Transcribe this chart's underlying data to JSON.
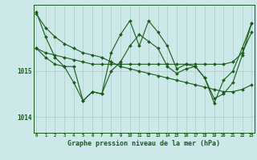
{
  "title": "Graphe pression niveau de la mer (hPa)",
  "bg_color": "#cce8e8",
  "grid_color": "#aacccc",
  "line_color": "#1a5c1a",
  "x_labels": [
    "0",
    "1",
    "2",
    "3",
    "4",
    "5",
    "6",
    "7",
    "8",
    "9",
    "10",
    "11",
    "12",
    "13",
    "14",
    "15",
    "16",
    "17",
    "18",
    "19",
    "20",
    "21",
    "22",
    "23"
  ],
  "ylim": [
    1013.65,
    1016.45
  ],
  "yticks": [
    1014,
    1015
  ],
  "series": [
    [
      1016.25,
      1015.95,
      1015.75,
      1015.6,
      1015.5,
      1015.4,
      1015.35,
      1015.3,
      1015.2,
      1015.1,
      1015.05,
      1015.0,
      1014.95,
      1014.9,
      1014.85,
      1014.8,
      1014.75,
      1014.7,
      1014.65,
      1014.6,
      1014.55,
      1014.55,
      1014.6,
      1014.7
    ],
    [
      1015.5,
      1015.4,
      1015.35,
      1015.3,
      1015.25,
      1015.2,
      1015.15,
      1015.15,
      1015.15,
      1015.15,
      1015.15,
      1015.15,
      1015.15,
      1015.15,
      1015.15,
      1015.15,
      1015.15,
      1015.15,
      1015.15,
      1015.15,
      1015.15,
      1015.2,
      1015.4,
      1015.85
    ],
    [
      1015.5,
      1015.3,
      1015.15,
      1015.1,
      1014.75,
      1014.35,
      1014.55,
      1014.5,
      1015.0,
      1015.2,
      1015.55,
      1015.8,
      1015.65,
      1015.5,
      1015.1,
      1014.95,
      1015.05,
      1015.1,
      1014.85,
      1014.4,
      1014.5,
      1014.75,
      1015.35,
      1016.05
    ],
    [
      1016.3,
      1015.75,
      1015.3,
      1015.1,
      1015.1,
      1014.35,
      1014.55,
      1014.5,
      1015.4,
      1015.8,
      1016.1,
      1015.55,
      1016.1,
      1015.85,
      1015.55,
      1015.05,
      1015.15,
      1015.1,
      1014.85,
      1014.3,
      1014.8,
      1015.0,
      1015.5,
      1016.05
    ]
  ]
}
